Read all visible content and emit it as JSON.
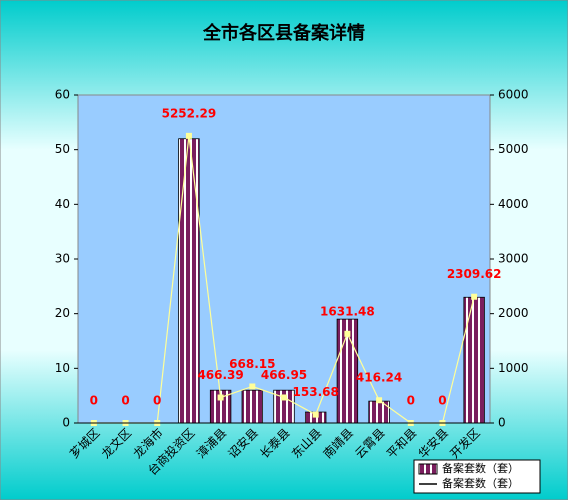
{
  "chart_data": {
    "type": "bar-line",
    "title": "全市各区县备案详情",
    "categories": [
      "芗城区",
      "龙文区",
      "龙海市",
      "台商投资区",
      "漳浦县",
      "诏安县",
      "长泰县",
      "东山县",
      "南靖县",
      "云霄县",
      "平和县",
      "华安县",
      "开发区"
    ],
    "series": [
      {
        "name": "备案套数（套）",
        "type": "bar",
        "color": "#7a1e5e",
        "values": [
          0,
          0,
          0,
          52,
          6,
          6,
          6,
          2,
          19,
          4,
          0,
          0,
          23
        ]
      },
      {
        "name": "备案套数（套）",
        "type": "line",
        "axis": "y2",
        "color": "#ffff99",
        "label_color": "#ff0000",
        "values": [
          0,
          0,
          0,
          5252.29,
          466.39,
          668.15,
          466.95,
          153.68,
          1631.48,
          416.24,
          0,
          0,
          2309.62
        ]
      }
    ],
    "ylim": [
      0,
      60
    ],
    "yticks": [
      0,
      10,
      20,
      30,
      40,
      50,
      60
    ],
    "y2lim": [
      0,
      6000
    ],
    "y2ticks": [
      0,
      1000,
      2000,
      3000,
      4000,
      5000,
      6000
    ],
    "legend": "lower right"
  }
}
